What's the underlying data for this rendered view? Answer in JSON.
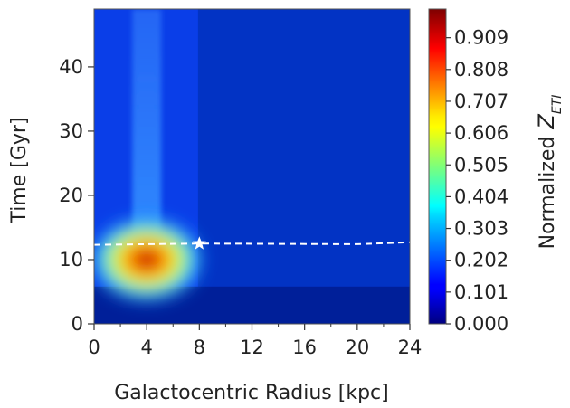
{
  "chart_data": {
    "type": "heatmap",
    "xlabel": "Galactocentric Radius [kpc]",
    "ylabel": "Time [Gyr]",
    "xlim": [
      0,
      24
    ],
    "ylim": [
      0,
      49
    ],
    "x_ticks": [
      "0",
      "4",
      "8",
      "12",
      "16",
      "20",
      "24"
    ],
    "x_minor_ticks": [
      2,
      6,
      10,
      14,
      18,
      22
    ],
    "y_ticks": [
      "0",
      "10",
      "20",
      "30",
      "40"
    ],
    "colorbar": {
      "label": "Normalized",
      "label_symbol": "Z",
      "label_subscript": "ETI",
      "colormap": "jet",
      "range": [
        0,
        1
      ],
      "ticks": [
        "0.000",
        "0.101",
        "0.202",
        "0.303",
        "0.404",
        "0.505",
        "0.606",
        "0.707",
        "0.808",
        "0.909"
      ]
    },
    "peak": {
      "x": 4,
      "y": 10,
      "value": 1.0
    },
    "marker": {
      "symbol": "star",
      "x": 8,
      "y": 12.5,
      "color": "#ffffff"
    },
    "dashed_line": {
      "color": "#ffffff",
      "points": [
        [
          0,
          12.3
        ],
        [
          8,
          12.5
        ],
        [
          20,
          12.4
        ],
        [
          24,
          12.7
        ]
      ]
    }
  }
}
